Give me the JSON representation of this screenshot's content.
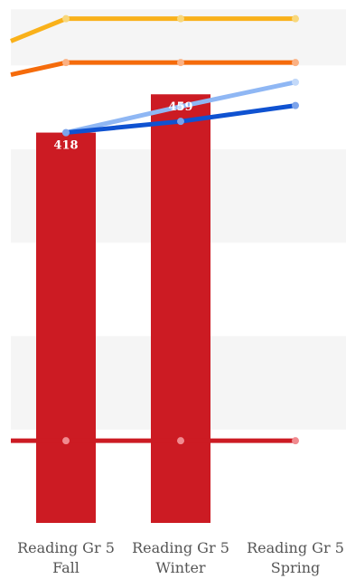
{
  "chart_data": {
    "type": "bar",
    "categories": [
      [
        "Reading Gr 5",
        "Fall"
      ],
      [
        "Reading Gr 5",
        "Winter"
      ],
      [
        "Reading Gr 5",
        "Spring"
      ]
    ],
    "bars": {
      "values": [
        418,
        459,
        null
      ],
      "labels": [
        "418",
        "459",
        ""
      ],
      "color": "#cc1b23"
    },
    "lines": [
      {
        "values": [
          null,
          540,
          540
        ],
        "color": "#f9b11a",
        "point_color": "#f8d77a"
      },
      {
        "values": [
          null,
          493,
          493
        ],
        "color": "#f56b0b",
        "point_color": "#fbb183"
      },
      {
        "values": [
          418,
          446,
          472
        ],
        "color": "#8fb7f4",
        "point_color": "#c3d9f9"
      },
      {
        "values": [
          418,
          430,
          447
        ],
        "color": "#0f52d1",
        "point_color": "#7ca3ea"
      },
      {
        "values": [
          null,
          88,
          88
        ],
        "color": "#cc1b23",
        "point_color": "#f08a8f"
      }
    ],
    "edge_lines": [
      {
        "y0": 516,
        "y1": 540,
        "color": "#f9b11a"
      },
      {
        "y0": 480,
        "y1": 493,
        "color": "#f56b0b"
      },
      {
        "y0": 88,
        "y1": 88,
        "color": "#cc1b23"
      }
    ],
    "bands": [
      [
        490,
        550
      ],
      [
        300,
        400
      ],
      [
        100,
        200
      ]
    ],
    "ylim": [
      0,
      560
    ],
    "grid": true,
    "band_color": "#f5f5f5"
  }
}
